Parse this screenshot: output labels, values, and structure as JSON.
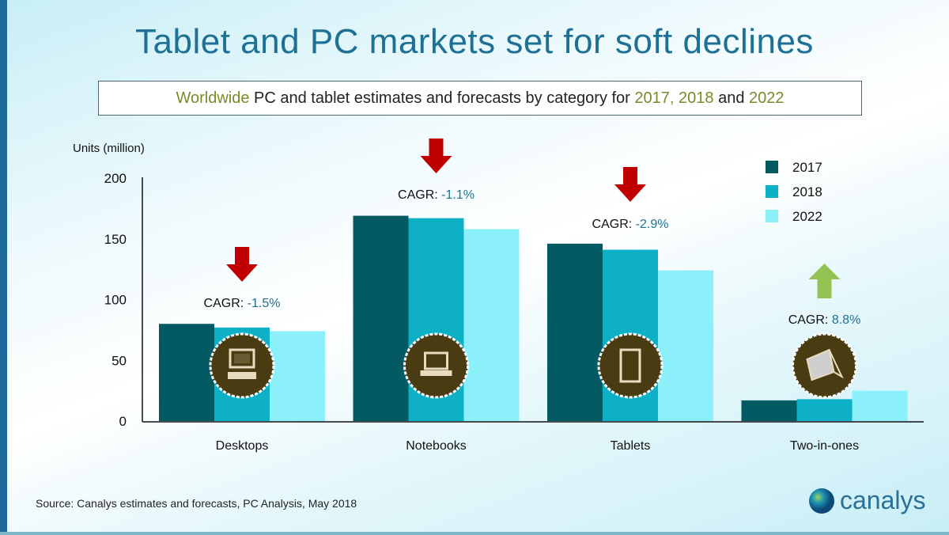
{
  "title": "Tablet and PC markets set for soft declines",
  "subtitle": {
    "parts": [
      "Worldwide",
      " PC and tablet estimates and forecasts by category for ",
      "2017, 2018",
      " and ",
      "2022"
    ]
  },
  "source": "Source: Canalys estimates and forecasts, PC Analysis, May 2018",
  "logo_text": "canalys",
  "colors": {
    "s2017": "#035a63",
    "s2018": "#0db0c4",
    "s2022": "#8cf0fa",
    "down": "#c00000",
    "up": "#92c353",
    "icon_bg": "#4a3c12",
    "cagr_value": "#1f7095"
  },
  "chart_data": {
    "type": "bar",
    "title": "Tablet and PC markets set for soft declines",
    "ylabel": "Units (million)",
    "xlabel": "",
    "ylim": [
      0,
      200
    ],
    "yticks": [
      "0",
      "50",
      "100",
      "150",
      "200"
    ],
    "categories": [
      "Desktops",
      "Notebooks",
      "Tablets",
      "Two-in-ones"
    ],
    "series": [
      {
        "name": "2017",
        "values": [
          80,
          169,
          146,
          17
        ]
      },
      {
        "name": "2018",
        "values": [
          77,
          167,
          141,
          18
        ]
      },
      {
        "name": "2022",
        "values": [
          74,
          158,
          124,
          25
        ]
      }
    ],
    "legend_position": "top-right",
    "annotations": [
      {
        "category": "Desktops",
        "label": "CAGR: ",
        "value": "-1.5%",
        "direction": "down",
        "icon": "desktop-icon"
      },
      {
        "category": "Notebooks",
        "label": "CAGR: ",
        "value": "-1.1%",
        "direction": "down",
        "icon": "laptop-icon"
      },
      {
        "category": "Tablets",
        "label": "CAGR: ",
        "value": "-2.9%",
        "direction": "down",
        "icon": "tablet-icon"
      },
      {
        "category": "Two-in-ones",
        "label": "CAGR: ",
        "value": "8.8%",
        "direction": "up",
        "icon": "two-in-one-icon"
      }
    ]
  }
}
